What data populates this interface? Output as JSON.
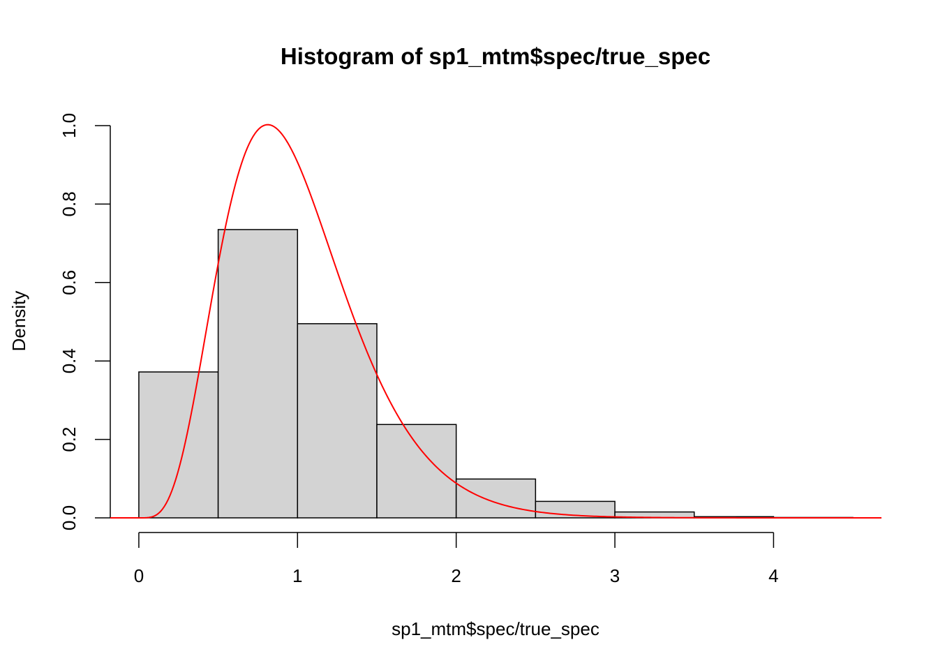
{
  "chart_data": {
    "type": "bar",
    "subtype": "histogram",
    "title": "Histogram of sp1_mtm$spec/true_spec",
    "xlabel": "sp1_mtm$spec/true_spec",
    "ylabel": "Density",
    "xlim": [
      -0.18,
      4.68
    ],
    "ylim": [
      0,
      1.0
    ],
    "x_ticks": [
      "0",
      "1",
      "2",
      "3",
      "4"
    ],
    "y_ticks": [
      "0.0",
      "0.2",
      "0.4",
      "0.6",
      "0.8",
      "1.0"
    ],
    "bins": [
      {
        "from": 0.0,
        "to": 0.5,
        "density": 0.372
      },
      {
        "from": 0.5,
        "to": 1.0,
        "density": 0.735
      },
      {
        "from": 1.0,
        "to": 1.5,
        "density": 0.495
      },
      {
        "from": 1.5,
        "to": 2.0,
        "density": 0.238
      },
      {
        "from": 2.0,
        "to": 2.5,
        "density": 0.099
      },
      {
        "from": 2.5,
        "to": 3.0,
        "density": 0.042
      },
      {
        "from": 3.0,
        "to": 3.5,
        "density": 0.015
      },
      {
        "from": 3.5,
        "to": 4.0,
        "density": 0.003
      },
      {
        "from": 4.0,
        "to": 4.5,
        "density": 0.001
      }
    ],
    "bar_fill": "#d3d3d3",
    "bar_stroke": "#000000",
    "curve": {
      "color": "#ff0000",
      "description": "gamma density, shape 5.33, rate 5.33",
      "shape": 5.33,
      "rate": 5.33,
      "x_range": [
        -0.18,
        4.68
      ]
    },
    "grid": false,
    "legend": "none"
  }
}
